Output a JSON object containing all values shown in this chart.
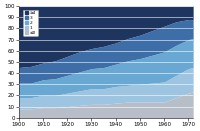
{
  "years": [
    1900,
    1905,
    1910,
    1915,
    1920,
    1925,
    1930,
    1935,
    1940,
    1945,
    1950,
    1955,
    1960,
    1965,
    1970,
    1972
  ],
  "categories": [
    "≤0",
    "1",
    "2",
    "3",
    "≥4"
  ],
  "colors": [
    "#b8bec8",
    "#9dc4e0",
    "#6aa8d4",
    "#3d6ea8",
    "#1e3560"
  ],
  "data": {
    "≤0": [
      8,
      8,
      9,
      9,
      10,
      11,
      12,
      12,
      13,
      14,
      14,
      14,
      14,
      18,
      22,
      23
    ],
    "1": [
      10,
      10,
      11,
      11,
      12,
      13,
      14,
      14,
      15,
      15,
      16,
      17,
      18,
      20,
      22,
      22
    ],
    "2": [
      13,
      13,
      14,
      15,
      16,
      17,
      18,
      19,
      20,
      22,
      23,
      25,
      27,
      27,
      26,
      26
    ],
    "3": [
      14,
      15,
      15,
      16,
      17,
      18,
      18,
      19,
      19,
      20,
      21,
      22,
      23,
      21,
      18,
      17
    ],
    "≥4": [
      55,
      54,
      51,
      49,
      45,
      41,
      38,
      36,
      33,
      29,
      26,
      22,
      18,
      14,
      12,
      12
    ]
  },
  "ylim": [
    0,
    100
  ],
  "yticks": [
    0,
    10,
    20,
    30,
    40,
    50,
    60,
    70,
    80,
    90,
    100
  ],
  "xticks": [
    1900,
    1910,
    1920,
    1930,
    1940,
    1950,
    1960,
    1970
  ],
  "legend_labels": [
    "≥4",
    "3",
    "2",
    "1",
    "≤0"
  ],
  "legend_colors": [
    "#1e3560",
    "#3d6ea8",
    "#6aa8d4",
    "#9dc4e0",
    "#b8bec8"
  ]
}
